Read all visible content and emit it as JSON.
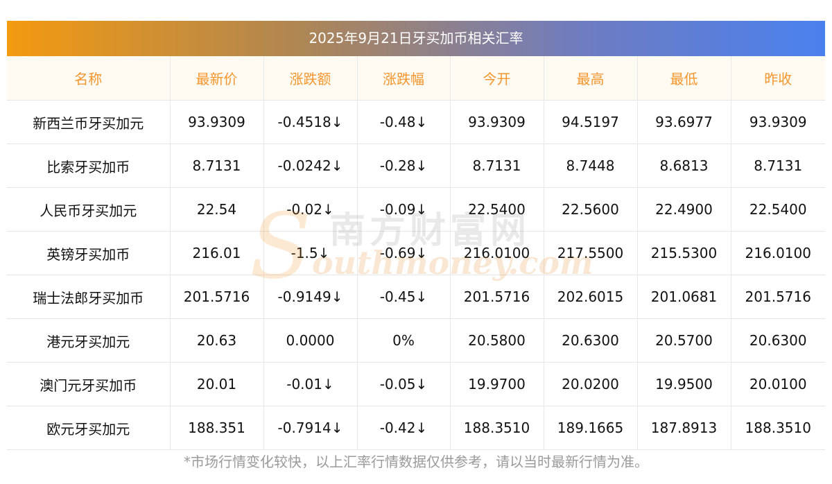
{
  "title": "2025年9月21日牙买加币相关汇率",
  "columns": [
    "名称",
    "最新价",
    "涨跌额",
    "涨跌幅",
    "今开",
    "最高",
    "最低",
    "昨收"
  ],
  "rows": [
    {
      "name": "新西兰币牙买加元",
      "latest": "93.9309",
      "change": "-0.4518↓",
      "pct": "-0.48↓",
      "open": "93.9309",
      "high": "94.5197",
      "low": "93.6977",
      "prev": "93.9309",
      "trend": "down"
    },
    {
      "name": "比索牙买加币",
      "latest": "8.7131",
      "change": "-0.0242↓",
      "pct": "-0.28↓",
      "open": "8.7131",
      "high": "8.7448",
      "low": "8.6813",
      "prev": "8.7131",
      "trend": "down"
    },
    {
      "name": "人民币牙买加元",
      "latest": "22.54",
      "change": "-0.02↓",
      "pct": "-0.09↓",
      "open": "22.5400",
      "high": "22.5600",
      "low": "22.4900",
      "prev": "22.5400",
      "trend": "down"
    },
    {
      "name": "英镑牙买加币",
      "latest": "216.01",
      "change": "-1.5↓",
      "pct": "-0.69↓",
      "open": "216.0100",
      "high": "217.5500",
      "low": "215.5300",
      "prev": "216.0100",
      "trend": "down"
    },
    {
      "name": "瑞士法郎牙买加币",
      "latest": "201.5716",
      "change": "-0.9149↓",
      "pct": "-0.45↓",
      "open": "201.5716",
      "high": "202.6015",
      "low": "201.0681",
      "prev": "201.5716",
      "trend": "down"
    },
    {
      "name": "港元牙买加元",
      "latest": "20.63",
      "change": "0.0000",
      "pct": "0%",
      "open": "20.5800",
      "high": "20.6300",
      "low": "20.5700",
      "prev": "20.6300",
      "trend": "flat"
    },
    {
      "name": "澳门元牙买加币",
      "latest": "20.01",
      "change": "-0.01↓",
      "pct": "-0.05↓",
      "open": "19.9700",
      "high": "20.0200",
      "low": "19.9500",
      "prev": "20.0100",
      "trend": "down"
    },
    {
      "name": "欧元牙买加元",
      "latest": "188.351",
      "change": "-0.7914↓",
      "pct": "-0.42↓",
      "open": "188.3510",
      "high": "189.1665",
      "low": "187.8913",
      "prev": "188.3510",
      "trend": "down"
    }
  ],
  "footnote": "*市场行情变化较快，以上汇率行情数据仅供参考，请以当时最新行情为准。",
  "watermark": {
    "cn": "南方财富网",
    "en": "outhmoney.com",
    "s": "S"
  },
  "colors": {
    "header_text": "#f5962c",
    "header_bg": "#fffaf2",
    "down": "#1a8c1a",
    "gradient_start": "#f39a0f",
    "gradient_end": "#4a80ee"
  }
}
